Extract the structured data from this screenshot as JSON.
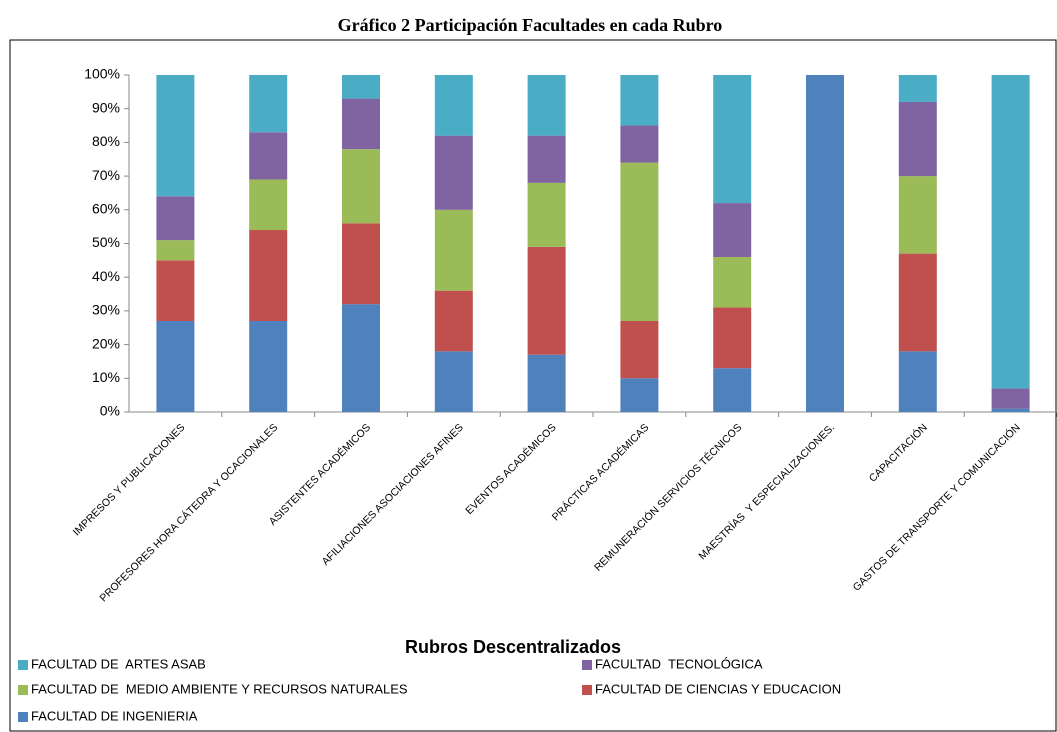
{
  "chart_data": {
    "type": "stacked_bar",
    "title": "Gráfico 2 Participación Facultades en cada Rubro",
    "x_label": "Rubros Descentralizados",
    "categories": [
      "IMPRESOS Y PUBLICACIONES",
      "PROFESORES HORA CÁTEDRA Y OCACIONALES",
      "ASISTENTES ACADÉMICOS",
      "AFILIACIONES ASOCIACIONES AFINES",
      "EVENTOS ACADÉMICOS",
      "PRÁCTICAS ACADÉMICAS",
      "REMUNERACIÓN SERVICIOS TÉCNICOS",
      "MAESTRÍAS  Y ESPECIALIZACIONES.",
      "CAPACITACIÓN",
      "GASTOS DE TRANSPORTE Y COMUNICACIÓN"
    ],
    "series": [
      {
        "name": "FACULTAD DE INGENIERIA",
        "color": "#4f81bd",
        "values": [
          27,
          27,
          32,
          18,
          17,
          10,
          13,
          100,
          18,
          1
        ]
      },
      {
        "name": "FACULTAD DE CIENCIAS Y EDUCACION",
        "color": "#c0504d",
        "values": [
          18,
          27,
          24,
          18,
          32,
          17,
          18,
          0,
          29,
          0
        ]
      },
      {
        "name": "FACULTAD DE  MEDIO AMBIENTE Y RECURSOS NATURALES",
        "color": "#9bbb59",
        "values": [
          6,
          15,
          22,
          24,
          19,
          47,
          15,
          0,
          23,
          0
        ]
      },
      {
        "name": "FACULTAD  TECNOLÓGICA",
        "color": "#8064a2",
        "values": [
          13,
          14,
          15,
          22,
          14,
          11,
          16,
          0,
          22,
          6
        ]
      },
      {
        "name": "FACULTAD DE  ARTES ASAB",
        "color": "#4bacc6",
        "values": [
          36,
          17,
          7,
          18,
          18,
          15,
          38,
          0,
          8,
          93
        ]
      }
    ],
    "ylim": [
      0,
      100
    ],
    "yticks": [
      {
        "value": 0,
        "label": "0%"
      },
      {
        "value": 10,
        "label": "10%"
      },
      {
        "value": 20,
        "label": "20%"
      },
      {
        "value": 30,
        "label": "30%"
      },
      {
        "value": 40,
        "label": "40%"
      },
      {
        "value": 50,
        "label": "50%"
      },
      {
        "value": 60,
        "label": "60%"
      },
      {
        "value": 70,
        "label": "70%"
      },
      {
        "value": 80,
        "label": "80%"
      },
      {
        "value": 90,
        "label": "90%"
      },
      {
        "value": 100,
        "label": "100%"
      }
    ],
    "grid": false
  }
}
